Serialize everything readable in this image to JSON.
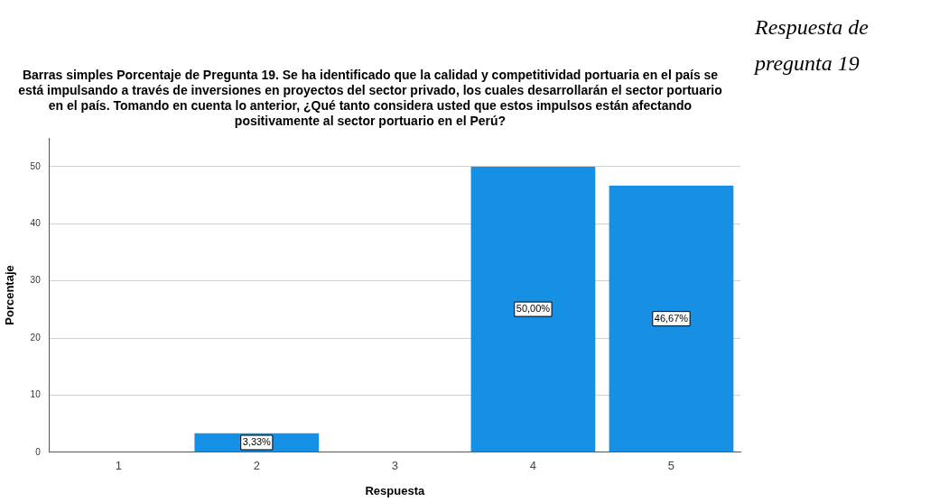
{
  "chart_data": {
    "type": "bar",
    "title": "Barras simples Porcentaje de Pregunta 19. Se ha identificado que la calidad y competitividad portuaria en el país se está impulsando a través de inversiones en proyectos del sector privado, los cuales desarrollarán el sector portuario en el país. Tomando en cuenta lo anterior, ¿Qué tanto considera usted que estos impulsos están afectando positivamente al sector portuario en el Perú?",
    "annotations": [
      "Respuesta de pregunta 19"
    ],
    "xlabel": "Respuesta",
    "ylabel": "Porcentaje",
    "categories": [
      "1",
      "2",
      "3",
      "4",
      "5"
    ],
    "values": [
      0,
      3.33,
      0,
      50,
      46.67
    ],
    "value_labels": [
      null,
      "3,33%",
      null,
      "50,00%",
      "46,67%"
    ],
    "color": "#1690e5",
    "ylim": [
      0,
      55
    ],
    "yticks": [
      0,
      10,
      20,
      30,
      40,
      50
    ],
    "grid": "y",
    "legend": false
  }
}
